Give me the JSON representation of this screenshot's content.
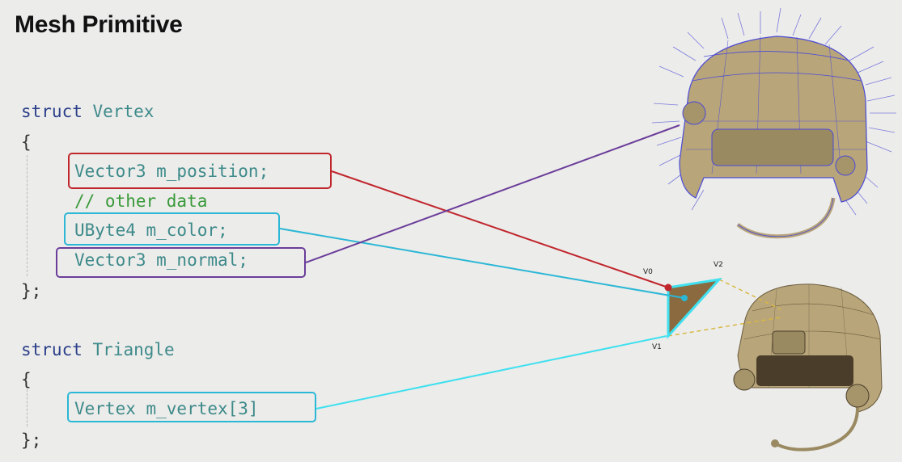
{
  "slide": {
    "title": "Mesh Primitive"
  },
  "code": {
    "vertex_keyword": "struct",
    "vertex_name": "Vertex",
    "vertex_open": "{",
    "position_line": "Vector3 m_position;",
    "comment_line": "// other data",
    "color_line": "UByte4 m_color;",
    "normal_line": "Vector3 m_normal;",
    "vertex_close": "};",
    "triangle_keyword": "struct",
    "triangle_name": "Triangle",
    "triangle_open": "{",
    "vertices_line": "Vertex m_vertex[3]",
    "triangle_close": "};"
  },
  "triangle_labels": {
    "v0": "V0",
    "v1": "V1",
    "v2": "V2"
  },
  "colors": {
    "position_highlight": "#c0262c",
    "color_highlight": "#2bb7d6",
    "normal_highlight": "#6b3d9a",
    "triangle_fill": "#8a6a3e",
    "triangle_edge": "#3fe0f0",
    "dashed_link": "#d8b840",
    "helmet": "#b8a57a"
  },
  "illustrations": {
    "top_right": "helmet-wireframe-with-vertex-normals",
    "bottom_right": "helmet-solid-shaded-mesh"
  }
}
